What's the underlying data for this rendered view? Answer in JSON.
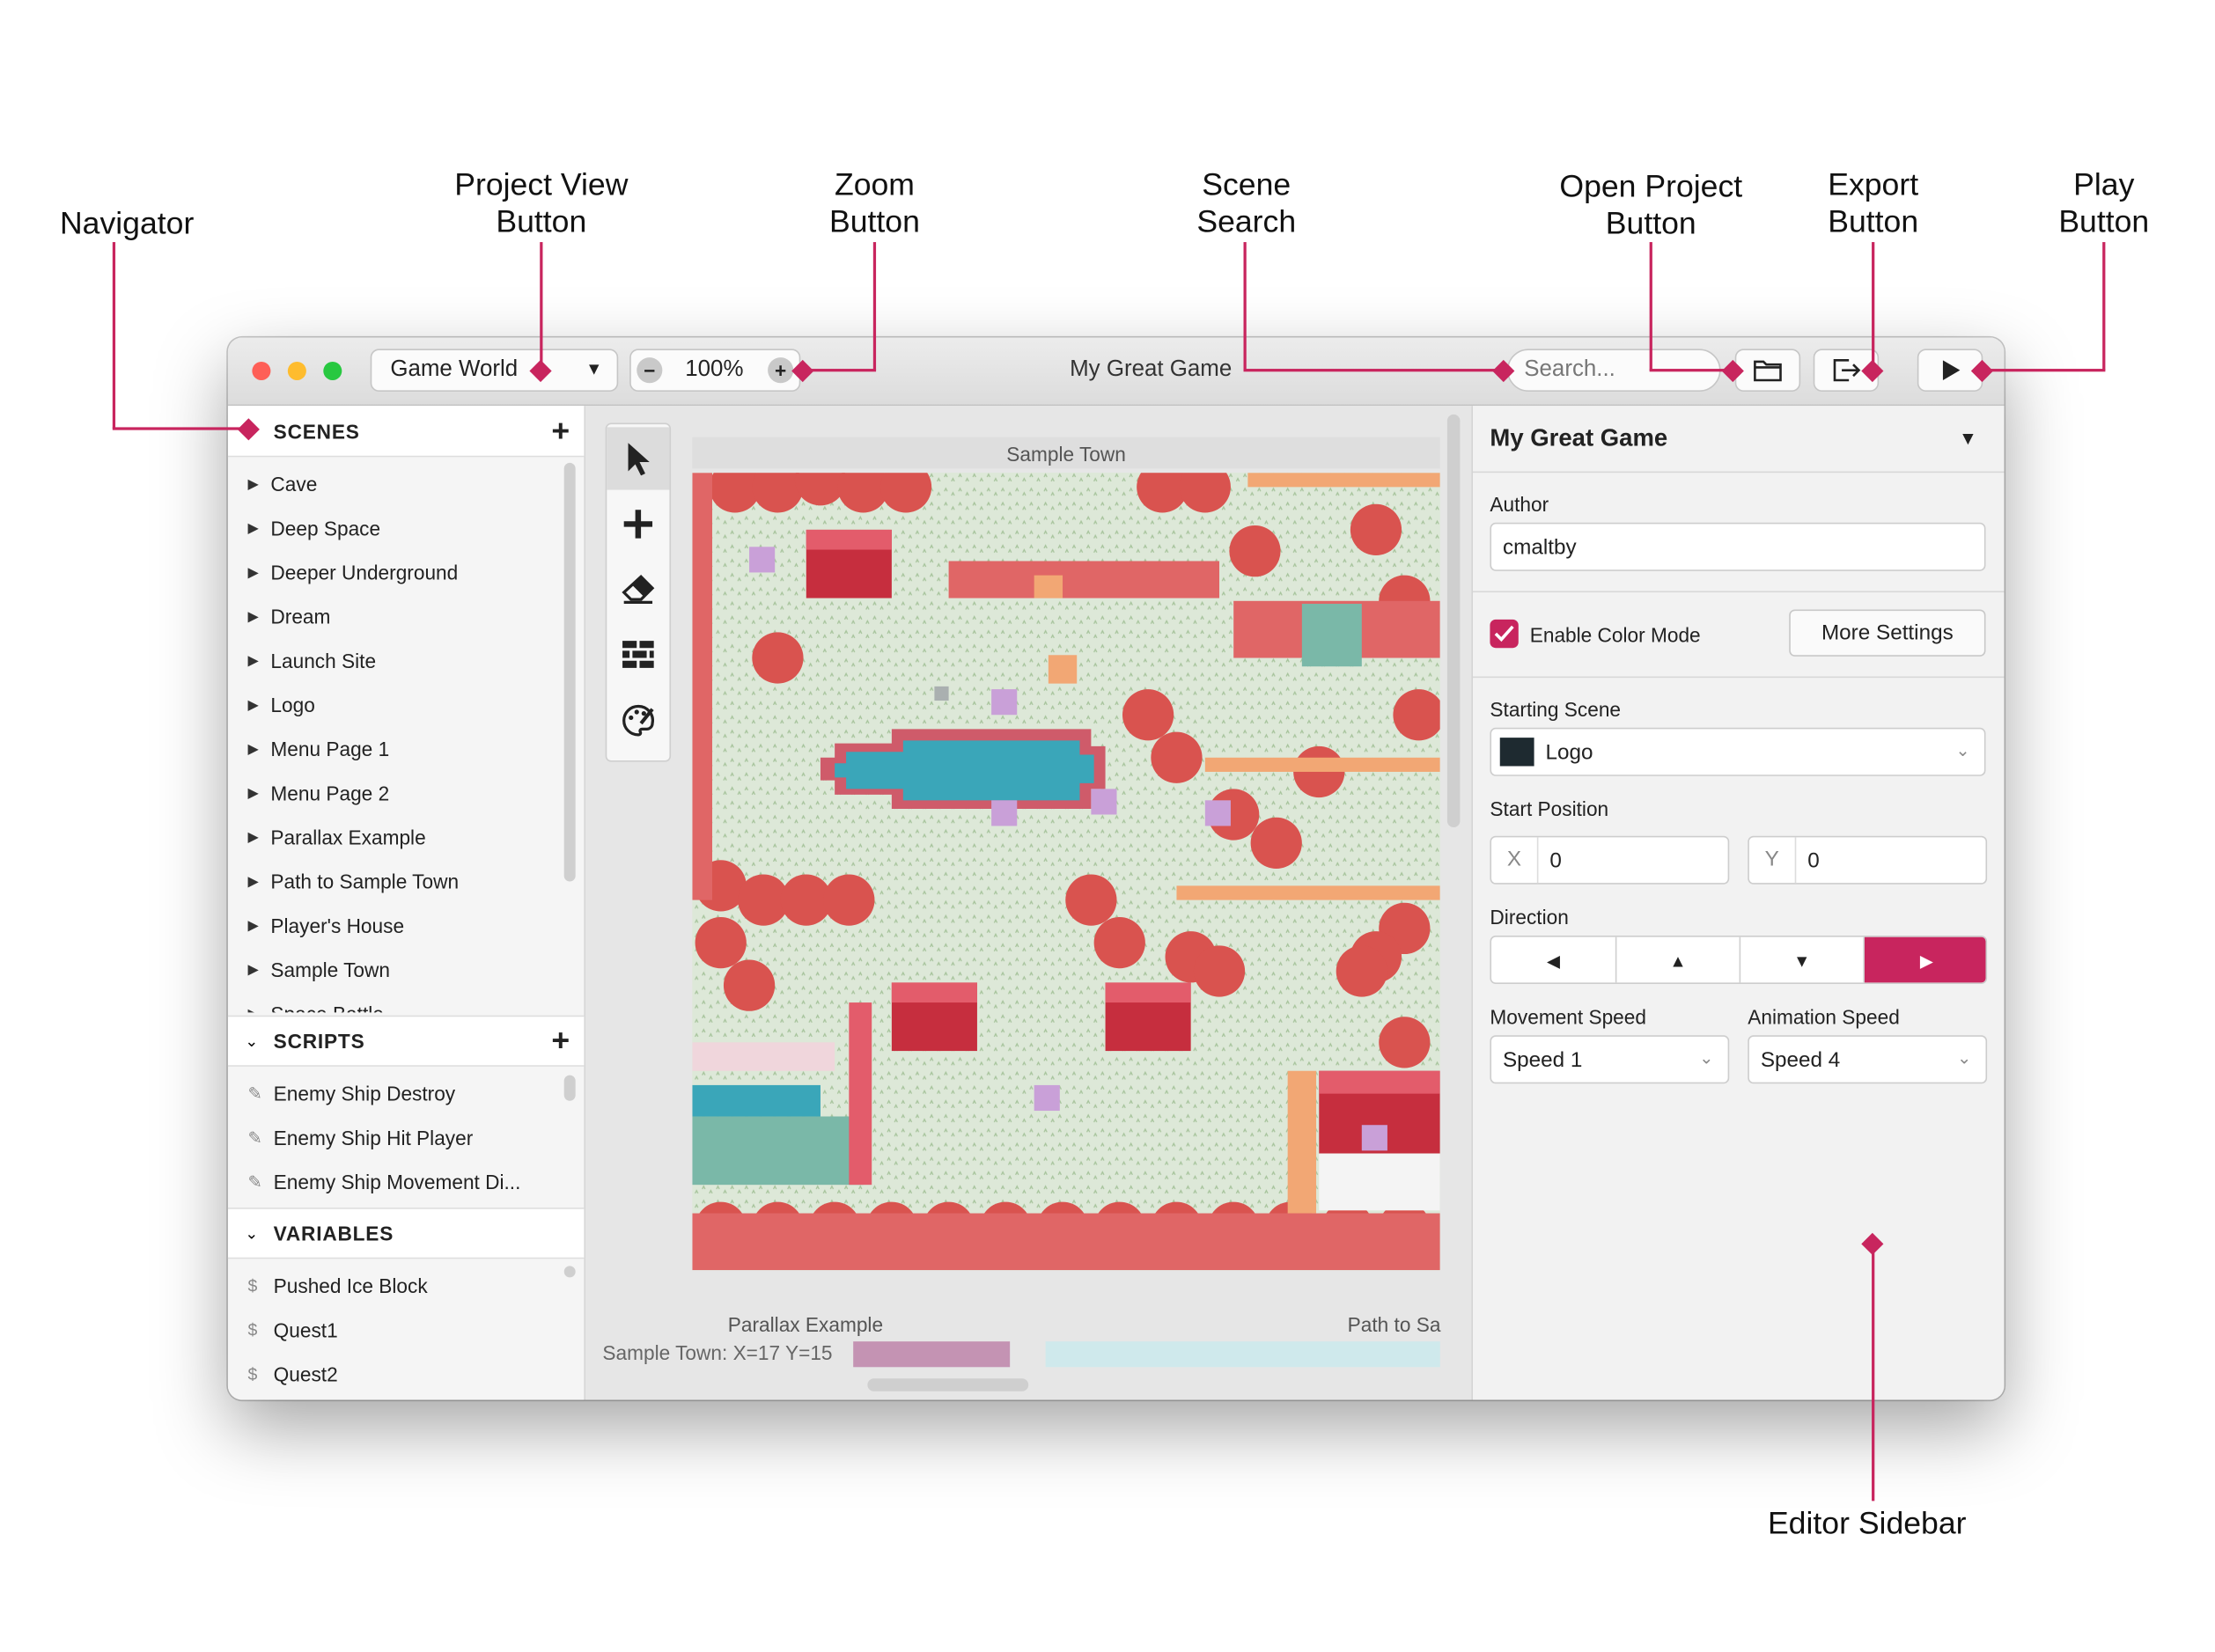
{
  "callouts": {
    "navigator": "Navigator",
    "project_view": [
      "Project View",
      "Button"
    ],
    "zoom": [
      "Zoom",
      "Button"
    ],
    "scene_search": [
      "Scene",
      "Search"
    ],
    "open_project": [
      "Open Project",
      "Button"
    ],
    "export": [
      "Export",
      "Button"
    ],
    "play": [
      "Play",
      "Button"
    ],
    "editor_sidebar": "Editor Sidebar"
  },
  "toolbar": {
    "view_select": "Game World",
    "zoom_level": "100%",
    "window_title": "My Great Game",
    "search_placeholder": "Search..."
  },
  "navigator": {
    "scenes_title": "SCENES",
    "scenes": [
      "Cave",
      "Deep Space",
      "Deeper Underground",
      "Dream",
      "Launch Site",
      "Logo",
      "Menu Page 1",
      "Menu Page 2",
      "Parallax Example",
      "Path to Sample Town",
      "Player's House",
      "Sample Town",
      "Space Battle"
    ],
    "scripts_title": "SCRIPTS",
    "scripts": [
      "Enemy Ship Destroy",
      "Enemy Ship Hit Player",
      "Enemy Ship Movement Di..."
    ],
    "variables_title": "VARIABLES",
    "variables": [
      "Pushed Ice Block",
      "Quest1",
      "Quest2"
    ]
  },
  "world": {
    "scene_title": "Sample Town",
    "status": "Sample Town: X=17 Y=15",
    "lower_scene_left": "Parallax Example",
    "lower_scene_right": "Path to Sa"
  },
  "sidebar": {
    "title": "My Great Game",
    "author_label": "Author",
    "author_value": "cmaltby",
    "color_mode_label": "Enable Color Mode",
    "color_mode_checked": true,
    "more_settings": "More Settings",
    "starting_scene_label": "Starting Scene",
    "starting_scene_value": "Logo",
    "start_position_label": "Start Position",
    "x_label": "X",
    "x_value": "0",
    "y_label": "Y",
    "y_value": "0",
    "direction_label": "Direction",
    "direction_selected": "right",
    "movement_speed_label": "Movement Speed",
    "movement_speed_value": "Speed 1",
    "animation_speed_label": "Animation Speed",
    "animation_speed_value": "Speed 4"
  },
  "colors": {
    "accent": "#c8255e",
    "tree": "#d9534f",
    "water": "#3aa6b9",
    "grass": "#dde8d8"
  }
}
